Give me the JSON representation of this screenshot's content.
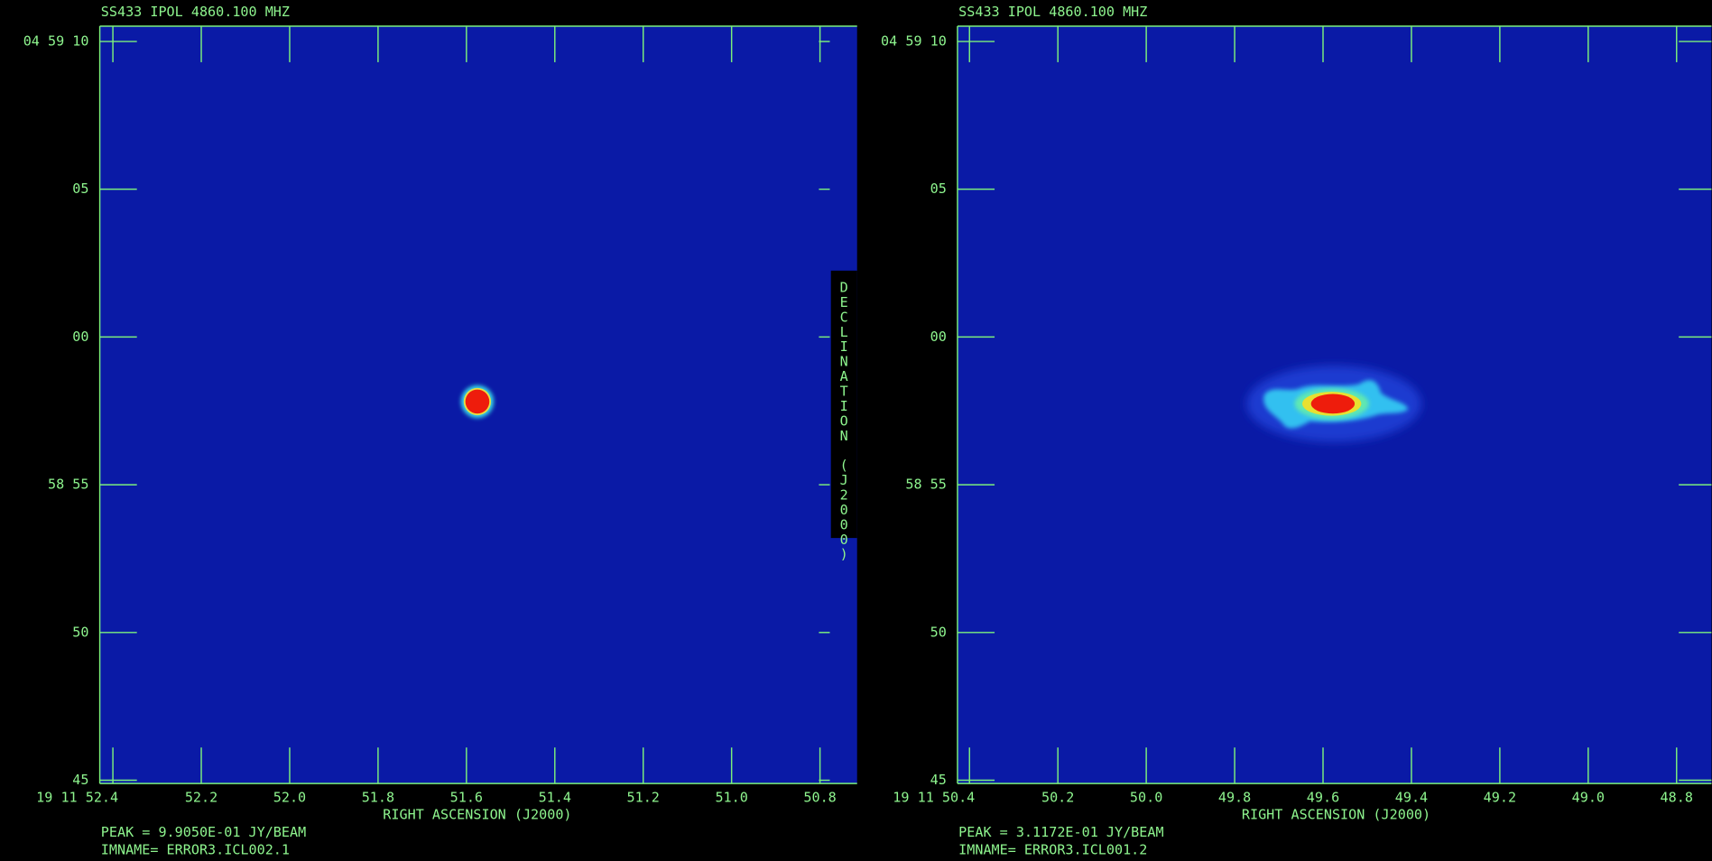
{
  "panels": [
    {
      "title": "SS433 IPOL  4860.100 MHZ",
      "y_tick_labels": [
        "04 59 10",
        "05",
        "00",
        "58 55",
        "50",
        "45"
      ],
      "x_tick_labels": [
        "19 11 52.4",
        "52.2",
        "52.0",
        "51.8",
        "51.6",
        "51.4",
        "51.2",
        "51.0",
        "50.8"
      ],
      "x_axis_label": "RIGHT ASCENSION (J2000)",
      "peak": "PEAK = 9.9050E-01 JY/BEAM",
      "imname": "IMNAME= ERROR3.ICL002.1"
    },
    {
      "title": "SS433 IPOL  4860.100 MHZ",
      "y_tick_labels": [
        "04 59 10",
        "05",
        "00",
        "58 55",
        "50",
        "45"
      ],
      "x_tick_labels": [
        "19 11 50.4",
        "50.2",
        "50.0",
        "49.8",
        "49.6",
        "49.4",
        "49.2",
        "49.0",
        "48.8"
      ],
      "x_axis_label": "RIGHT ASCENSION (J2000)",
      "peak": "PEAK = 3.1172E-01 JY/BEAM",
      "imname": "IMNAME= ERROR3.ICL001.2"
    }
  ],
  "y_axis_label": "DECLINATION (J2000)"
}
